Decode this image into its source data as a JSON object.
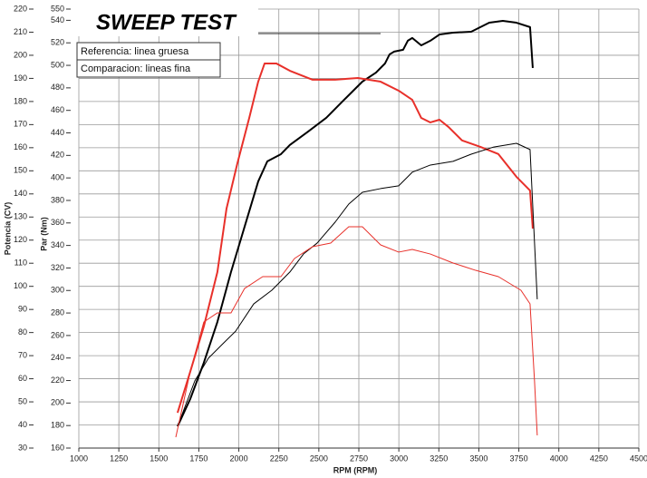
{
  "chart_data": {
    "type": "line",
    "title": "SWEEP TEST",
    "annotations": [
      "Referencia: linea gruesa",
      "Comparacion: lineas fina"
    ],
    "x_label": "RPM (RPM)",
    "y_label": "Potencia (CV)",
    "y2_label": "Par (Nm)",
    "xlim": [
      1000,
      4500
    ],
    "xticks": [
      1000,
      1250,
      1500,
      1750,
      2000,
      2250,
      2500,
      2750,
      3000,
      3250,
      3500,
      3750,
      4000,
      4250,
      4500
    ],
    "ylim": [
      30,
      220
    ],
    "yticks": [
      30,
      40,
      50,
      60,
      70,
      80,
      90,
      100,
      110,
      120,
      130,
      140,
      150,
      160,
      170,
      180,
      190,
      200,
      210,
      220
    ],
    "y2lim": [
      160,
      550
    ],
    "y2ticks": [
      160,
      180,
      200,
      220,
      240,
      260,
      280,
      300,
      320,
      340,
      360,
      380,
      400,
      420,
      440,
      460,
      480,
      500,
      520,
      540,
      550
    ],
    "y2_color": "#e8302a",
    "grid": true,
    "series": [
      {
        "color": "#000000",
        "x": [
          1617,
          1696,
          1781,
          1866,
          1951,
          2036,
          2121,
          2178,
          2263,
          2319,
          2433,
          2546,
          2659,
          2772,
          2857,
          2914,
          2942,
          2971,
          3027,
          3056,
          3084,
          3140,
          3197,
          3254,
          3339,
          3452,
          3565,
          3650,
          3735,
          3820,
          3837
        ],
        "values": [
          39.4,
          51.2,
          66.9,
          84.6,
          106.2,
          125.8,
          145.4,
          154.1,
          157.2,
          161.2,
          167.0,
          172.9,
          180.8,
          188.6,
          192.5,
          196.5,
          200.4,
          201.6,
          202.4,
          206.3,
          207.5,
          204.3,
          206.3,
          209.0,
          209.8,
          210.2,
          214.1,
          214.9,
          214.1,
          212.2,
          194.5
        ]
      },
      {
        "color": "#e8302a",
        "axis": "y2",
        "x": [
          1617,
          1696,
          1781,
          1866,
          1923,
          1991,
          2065,
          2121,
          2161,
          2234,
          2319,
          2461,
          2602,
          2744,
          2886,
          2999,
          3084,
          3140,
          3197,
          3254,
          3310,
          3395,
          3508,
          3622,
          3735,
          3820,
          3837
        ],
        "values": [
          191.4,
          227.7,
          268.0,
          316.4,
          372.7,
          413.0,
          453.3,
          485.5,
          501.7,
          501.7,
          495.2,
          487.2,
          487.2,
          488.8,
          485.5,
          477.5,
          469.4,
          453.3,
          449.3,
          451.7,
          445.3,
          433.3,
          427.7,
          421.2,
          401.0,
          388.8,
          355.0
        ]
      },
      {
        "color": "#000000",
        "x": [
          1617,
          1725,
          1810,
          1895,
          1980,
          2093,
          2206,
          2319,
          2404,
          2489,
          2602,
          2687,
          2772,
          2886,
          2999,
          3084,
          3197,
          3339,
          3452,
          3593,
          3735,
          3820,
          3865
        ],
        "values": [
          39.4,
          59.1,
          68.9,
          74.8,
          80.6,
          92.4,
          98.3,
          106.2,
          114.0,
          118.7,
          127.8,
          135.6,
          140.7,
          142.3,
          143.5,
          149.4,
          152.5,
          154.1,
          157.2,
          160.3,
          161.9,
          159.2,
          94.4
        ]
      },
      {
        "color": "#e8302a",
        "axis": "y2",
        "x": [
          1606,
          1696,
          1781,
          1866,
          1951,
          2036,
          2149,
          2263,
          2348,
          2461,
          2574,
          2687,
          2772,
          2886,
          2999,
          3084,
          3197,
          3339,
          3480,
          3622,
          3763,
          3820,
          3848,
          3865
        ],
        "values": [
          169.7,
          227.7,
          272.0,
          280.1,
          280.1,
          301.8,
          312.3,
          312.3,
          328.4,
          338.9,
          342.1,
          356.6,
          356.6,
          340.5,
          334.1,
          336.5,
          332.4,
          324.4,
          317.9,
          312.3,
          300.2,
          288.1,
          219.6,
          171.3
        ]
      }
    ]
  }
}
